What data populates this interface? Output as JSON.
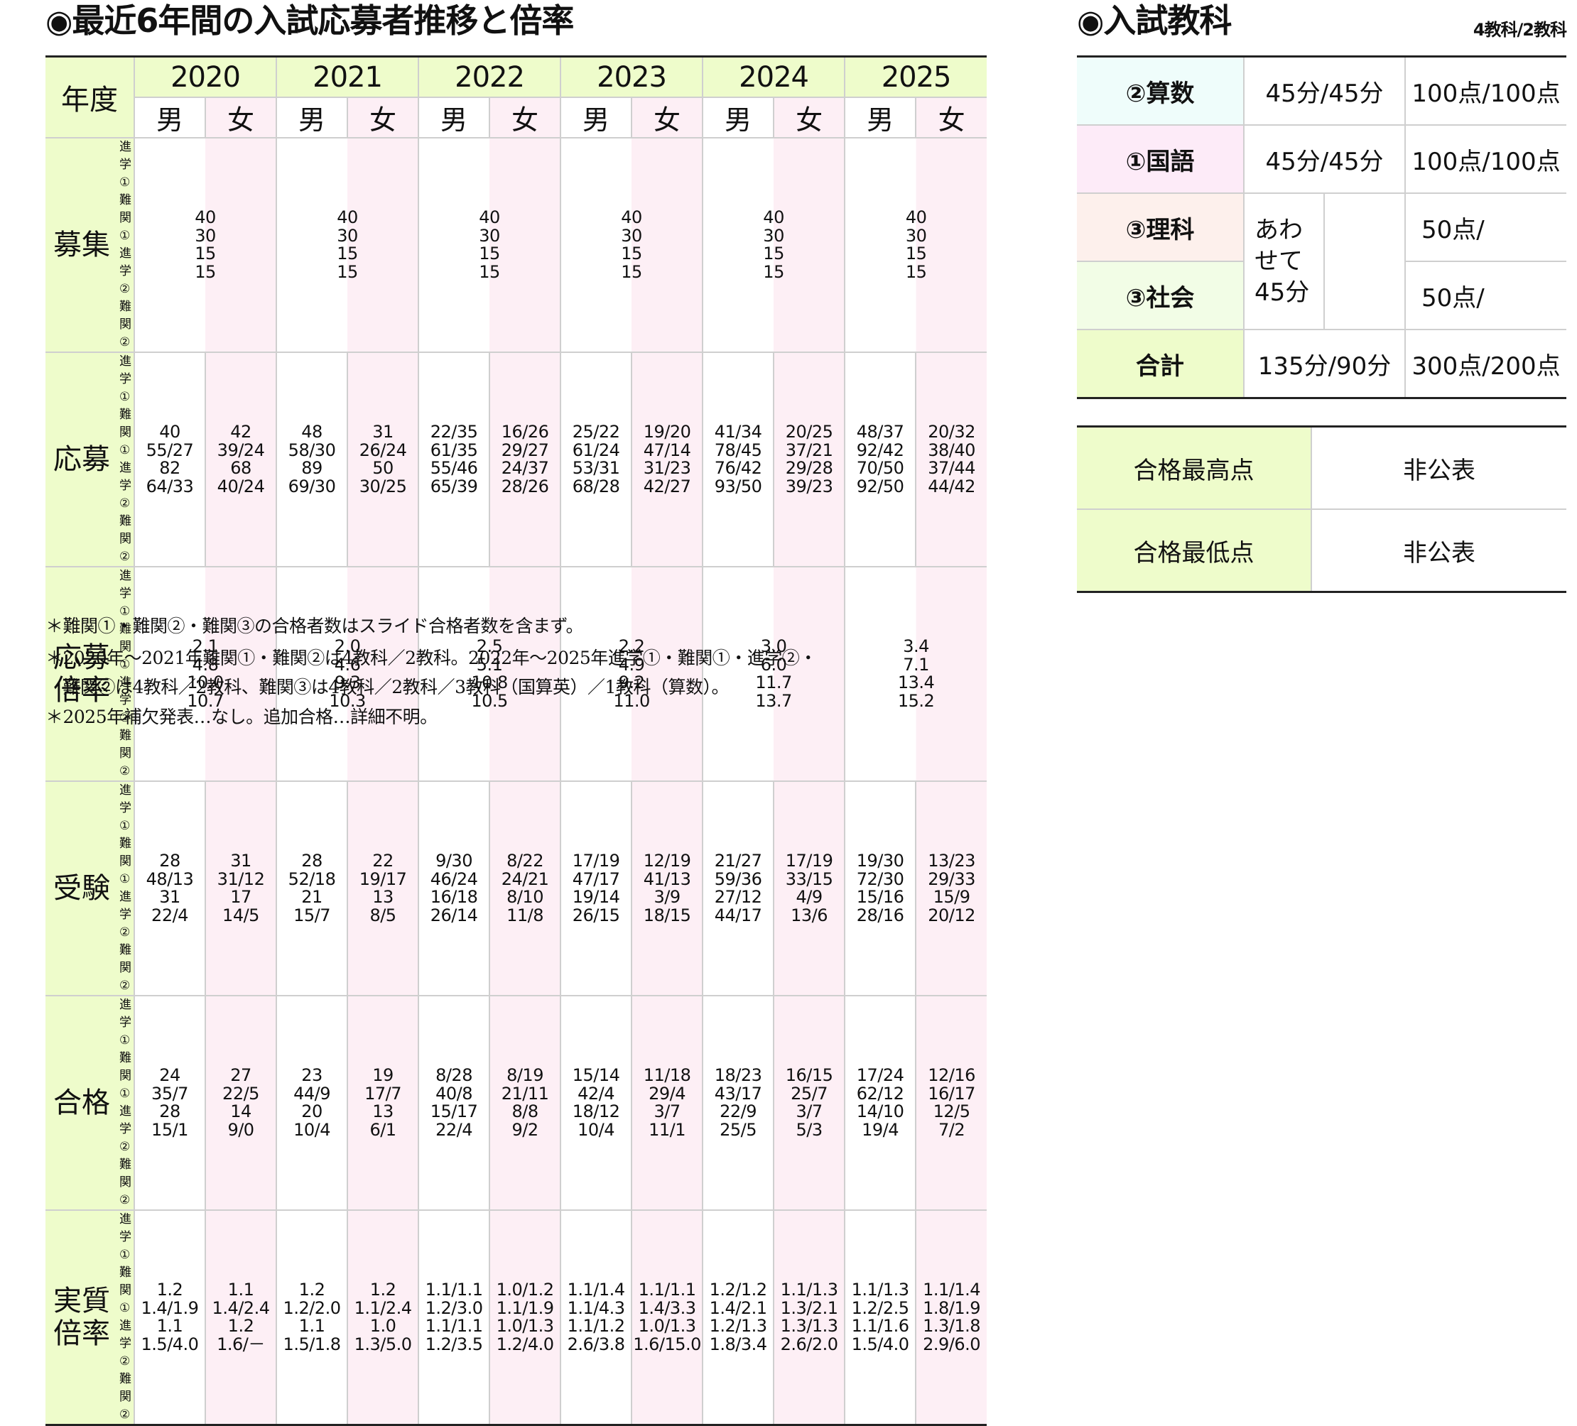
{
  "main": {
    "title_marker": "◉",
    "title": "最近6年間の入試応募者推移と倍率",
    "header_label": "年度",
    "years": [
      "2020",
      "2021",
      "2022",
      "2023",
      "2024",
      "2025"
    ],
    "sex_labels": {
      "male": "男",
      "female": "女"
    },
    "sub_labels": [
      "進学①",
      "難関①",
      "進学②",
      "難関②"
    ],
    "rows": [
      {
        "label": "募集",
        "merged": true,
        "values": [
          [
            "40",
            "30",
            "15",
            "15"
          ],
          [
            "40",
            "30",
            "15",
            "15"
          ],
          [
            "40",
            "30",
            "15",
            "15"
          ],
          [
            "40",
            "30",
            "15",
            "15"
          ],
          [
            "40",
            "30",
            "15",
            "15"
          ],
          [
            "40",
            "30",
            "15",
            "15"
          ]
        ]
      },
      {
        "label": "応募",
        "merged": false,
        "values": [
          {
            "m": [
              "40",
              "55/27",
              "82",
              "64/33"
            ],
            "f": [
              "42",
              "39/24",
              "68",
              "40/24"
            ]
          },
          {
            "m": [
              "48",
              "58/30",
              "89",
              "69/30"
            ],
            "f": [
              "31",
              "26/24",
              "50",
              "30/25"
            ]
          },
          {
            "m": [
              "22/35",
              "61/35",
              "55/46",
              "65/39"
            ],
            "f": [
              "16/26",
              "29/27",
              "24/37",
              "28/26"
            ]
          },
          {
            "m": [
              "25/22",
              "61/24",
              "53/31",
              "68/28"
            ],
            "f": [
              "19/20",
              "47/14",
              "31/23",
              "42/27"
            ]
          },
          {
            "m": [
              "41/34",
              "78/45",
              "76/42",
              "93/50"
            ],
            "f": [
              "20/25",
              "37/21",
              "29/28",
              "39/23"
            ]
          },
          {
            "m": [
              "48/37",
              "92/42",
              "70/50",
              "92/50"
            ],
            "f": [
              "20/32",
              "38/40",
              "37/44",
              "44/42"
            ]
          }
        ]
      },
      {
        "label": "応募\n倍率",
        "merged": true,
        "values": [
          [
            "2.1",
            "4.8",
            "10.0",
            "10.7"
          ],
          [
            "2.0",
            "4.6",
            "9.3",
            "10.3"
          ],
          [
            "2.5",
            "5.1",
            "10.8",
            "10.5"
          ],
          [
            "2.2",
            "4.9",
            "9.2",
            "11.0"
          ],
          [
            "3.0",
            "6.0",
            "11.7",
            "13.7"
          ],
          [
            "3.4",
            "7.1",
            "13.4",
            "15.2"
          ]
        ]
      },
      {
        "label": "受験",
        "merged": false,
        "values": [
          {
            "m": [
              "28",
              "48/13",
              "31",
              "22/4"
            ],
            "f": [
              "31",
              "31/12",
              "17",
              "14/5"
            ]
          },
          {
            "m": [
              "28",
              "52/18",
              "21",
              "15/7"
            ],
            "f": [
              "22",
              "19/17",
              "13",
              "8/5"
            ]
          },
          {
            "m": [
              "9/30",
              "46/24",
              "16/18",
              "26/14"
            ],
            "f": [
              "8/22",
              "24/21",
              "8/10",
              "11/8"
            ]
          },
          {
            "m": [
              "17/19",
              "47/17",
              "19/14",
              "26/15"
            ],
            "f": [
              "12/19",
              "41/13",
              "3/9",
              "18/15"
            ]
          },
          {
            "m": [
              "21/27",
              "59/36",
              "27/12",
              "44/17"
            ],
            "f": [
              "17/19",
              "33/15",
              "4/9",
              "13/6"
            ]
          },
          {
            "m": [
              "19/30",
              "72/30",
              "15/16",
              "28/16"
            ],
            "f": [
              "13/23",
              "29/33",
              "15/9",
              "20/12"
            ]
          }
        ]
      },
      {
        "label": "合格",
        "merged": false,
        "values": [
          {
            "m": [
              "24",
              "35/7",
              "28",
              "15/1"
            ],
            "f": [
              "27",
              "22/5",
              "14",
              "9/0"
            ]
          },
          {
            "m": [
              "23",
              "44/9",
              "20",
              "10/4"
            ],
            "f": [
              "19",
              "17/7",
              "13",
              "6/1"
            ]
          },
          {
            "m": [
              "8/28",
              "40/8",
              "15/17",
              "22/4"
            ],
            "f": [
              "8/19",
              "21/11",
              "8/8",
              "9/2"
            ]
          },
          {
            "m": [
              "15/14",
              "42/4",
              "18/12",
              "10/4"
            ],
            "f": [
              "11/18",
              "29/4",
              "3/7",
              "11/1"
            ]
          },
          {
            "m": [
              "18/23",
              "43/17",
              "22/9",
              "25/5"
            ],
            "f": [
              "16/15",
              "25/7",
              "3/7",
              "5/3"
            ]
          },
          {
            "m": [
              "17/24",
              "62/12",
              "14/10",
              "19/4"
            ],
            "f": [
              "12/16",
              "16/17",
              "12/5",
              "7/2"
            ]
          }
        ]
      },
      {
        "label": "実質\n倍率",
        "merged": false,
        "values": [
          {
            "m": [
              "1.2",
              "1.4/1.9",
              "1.1",
              "1.5/4.0"
            ],
            "f": [
              "1.1",
              "1.4/2.4",
              "1.2",
              "1.6/－"
            ]
          },
          {
            "m": [
              "1.2",
              "1.2/2.0",
              "1.1",
              "1.5/1.8"
            ],
            "f": [
              "1.2",
              "1.1/2.4",
              "1.0",
              "1.3/5.0"
            ]
          },
          {
            "m": [
              "1.1/1.1",
              "1.2/3.0",
              "1.1/1.1",
              "1.2/3.5"
            ],
            "f": [
              "1.0/1.2",
              "1.1/1.9",
              "1.0/1.3",
              "1.2/4.0"
            ]
          },
          {
            "m": [
              "1.1/1.4",
              "1.1/4.3",
              "1.1/1.2",
              "2.6/3.8"
            ],
            "f": [
              "1.1/1.1",
              "1.4/3.3",
              "1.0/1.3",
              "1.6/15.0"
            ]
          },
          {
            "m": [
              "1.2/1.2",
              "1.4/2.1",
              "1.2/1.3",
              "1.8/3.4"
            ],
            "f": [
              "1.1/1.3",
              "1.3/2.1",
              "1.3/1.3",
              "2.6/2.0"
            ]
          },
          {
            "m": [
              "1.1/1.3",
              "1.2/2.5",
              "1.1/1.6",
              "1.5/4.0"
            ],
            "f": [
              "1.1/1.4",
              "1.8/1.9",
              "1.3/1.8",
              "2.9/6.0"
            ]
          }
        ]
      }
    ],
    "notes": [
      "＊難関①・難関②・難関③の合格者数はスライド合格者数を含まず。",
      "＊2020年～2021年難関①・難関②は4教科／2教科。2022年～2025年進学①・難関①・進学②・",
      "　難関②は4教科／2教科、難関③は4教科／2教科／3教科（国算英）／1教科（算数）。",
      "＊2025年補欠発表…なし。追加合格…詳細不明。"
    ]
  },
  "subjects": {
    "title_marker": "◉",
    "title": "入試教科",
    "note": "4教科/2教科",
    "rows": [
      {
        "label": "②算数",
        "time": "45分/45分",
        "points": "100点/100点",
        "bg": "math"
      },
      {
        "label": "①国語",
        "time": "45分/45分",
        "points": "100点/100点",
        "bg": "jp"
      },
      {
        "label": "③理科",
        "points": "50点/",
        "bg": "sci"
      },
      {
        "label": "③社会",
        "points": "50点/",
        "bg": "soc"
      },
      {
        "label": "合計",
        "time": "135分/90分",
        "points": "300点/200点",
        "bg": "total"
      }
    ],
    "combined_time": "あわ\nせて\n45分"
  },
  "scores": {
    "rows": [
      {
        "label": "合格最高点",
        "value": "非公表"
      },
      {
        "label": "合格最低点",
        "value": "非公表"
      }
    ]
  },
  "colors": {
    "header_green": "#eefccb",
    "female_pink": "#fdeff5",
    "border_gray": "#cfcfcf",
    "rule_dark": "#222222"
  }
}
